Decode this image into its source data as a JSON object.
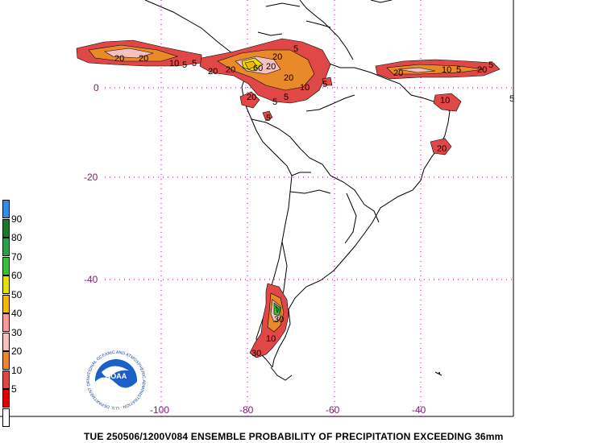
{
  "caption": "TUE 250506/1200V084  ENSEMBLE PROBABILITY OF PRECIPITATION EXCEEDING 36mm",
  "latitude_labels": [
    "0",
    "-20",
    "-40"
  ],
  "longitude_labels": [
    "-100",
    "-80",
    "-60",
    "-40"
  ],
  "legend": {
    "labels": [
      "90",
      "80",
      "70",
      "60",
      "50",
      "40",
      "30",
      "20",
      "10",
      "5"
    ],
    "colors": [
      "#2e8ee8",
      "#1a7a2a",
      "#2aa04a",
      "#38c038",
      "#e8e000",
      "#f4b800",
      "#f89a9a",
      "#f4c0c0",
      "#e88a2a",
      "#e04848",
      "#e00000",
      "#ffffff"
    ]
  },
  "contour_labels": [
    "20",
    "20",
    "10",
    "5",
    "20",
    "20",
    "60",
    "20",
    "5",
    "5",
    "20",
    "20",
    "10",
    "5",
    "20",
    "10",
    "5",
    "20",
    "5",
    "10",
    "5",
    "20",
    "20",
    "5",
    "30",
    "10",
    "30",
    "5",
    "5"
  ],
  "logo": {
    "name": "NOAA",
    "ring_text": "NATIONAL OCEANIC AND ATMOSPHERIC ADMINISTRATION · U.S. DEPARTMENT OF COMMERCE"
  }
}
